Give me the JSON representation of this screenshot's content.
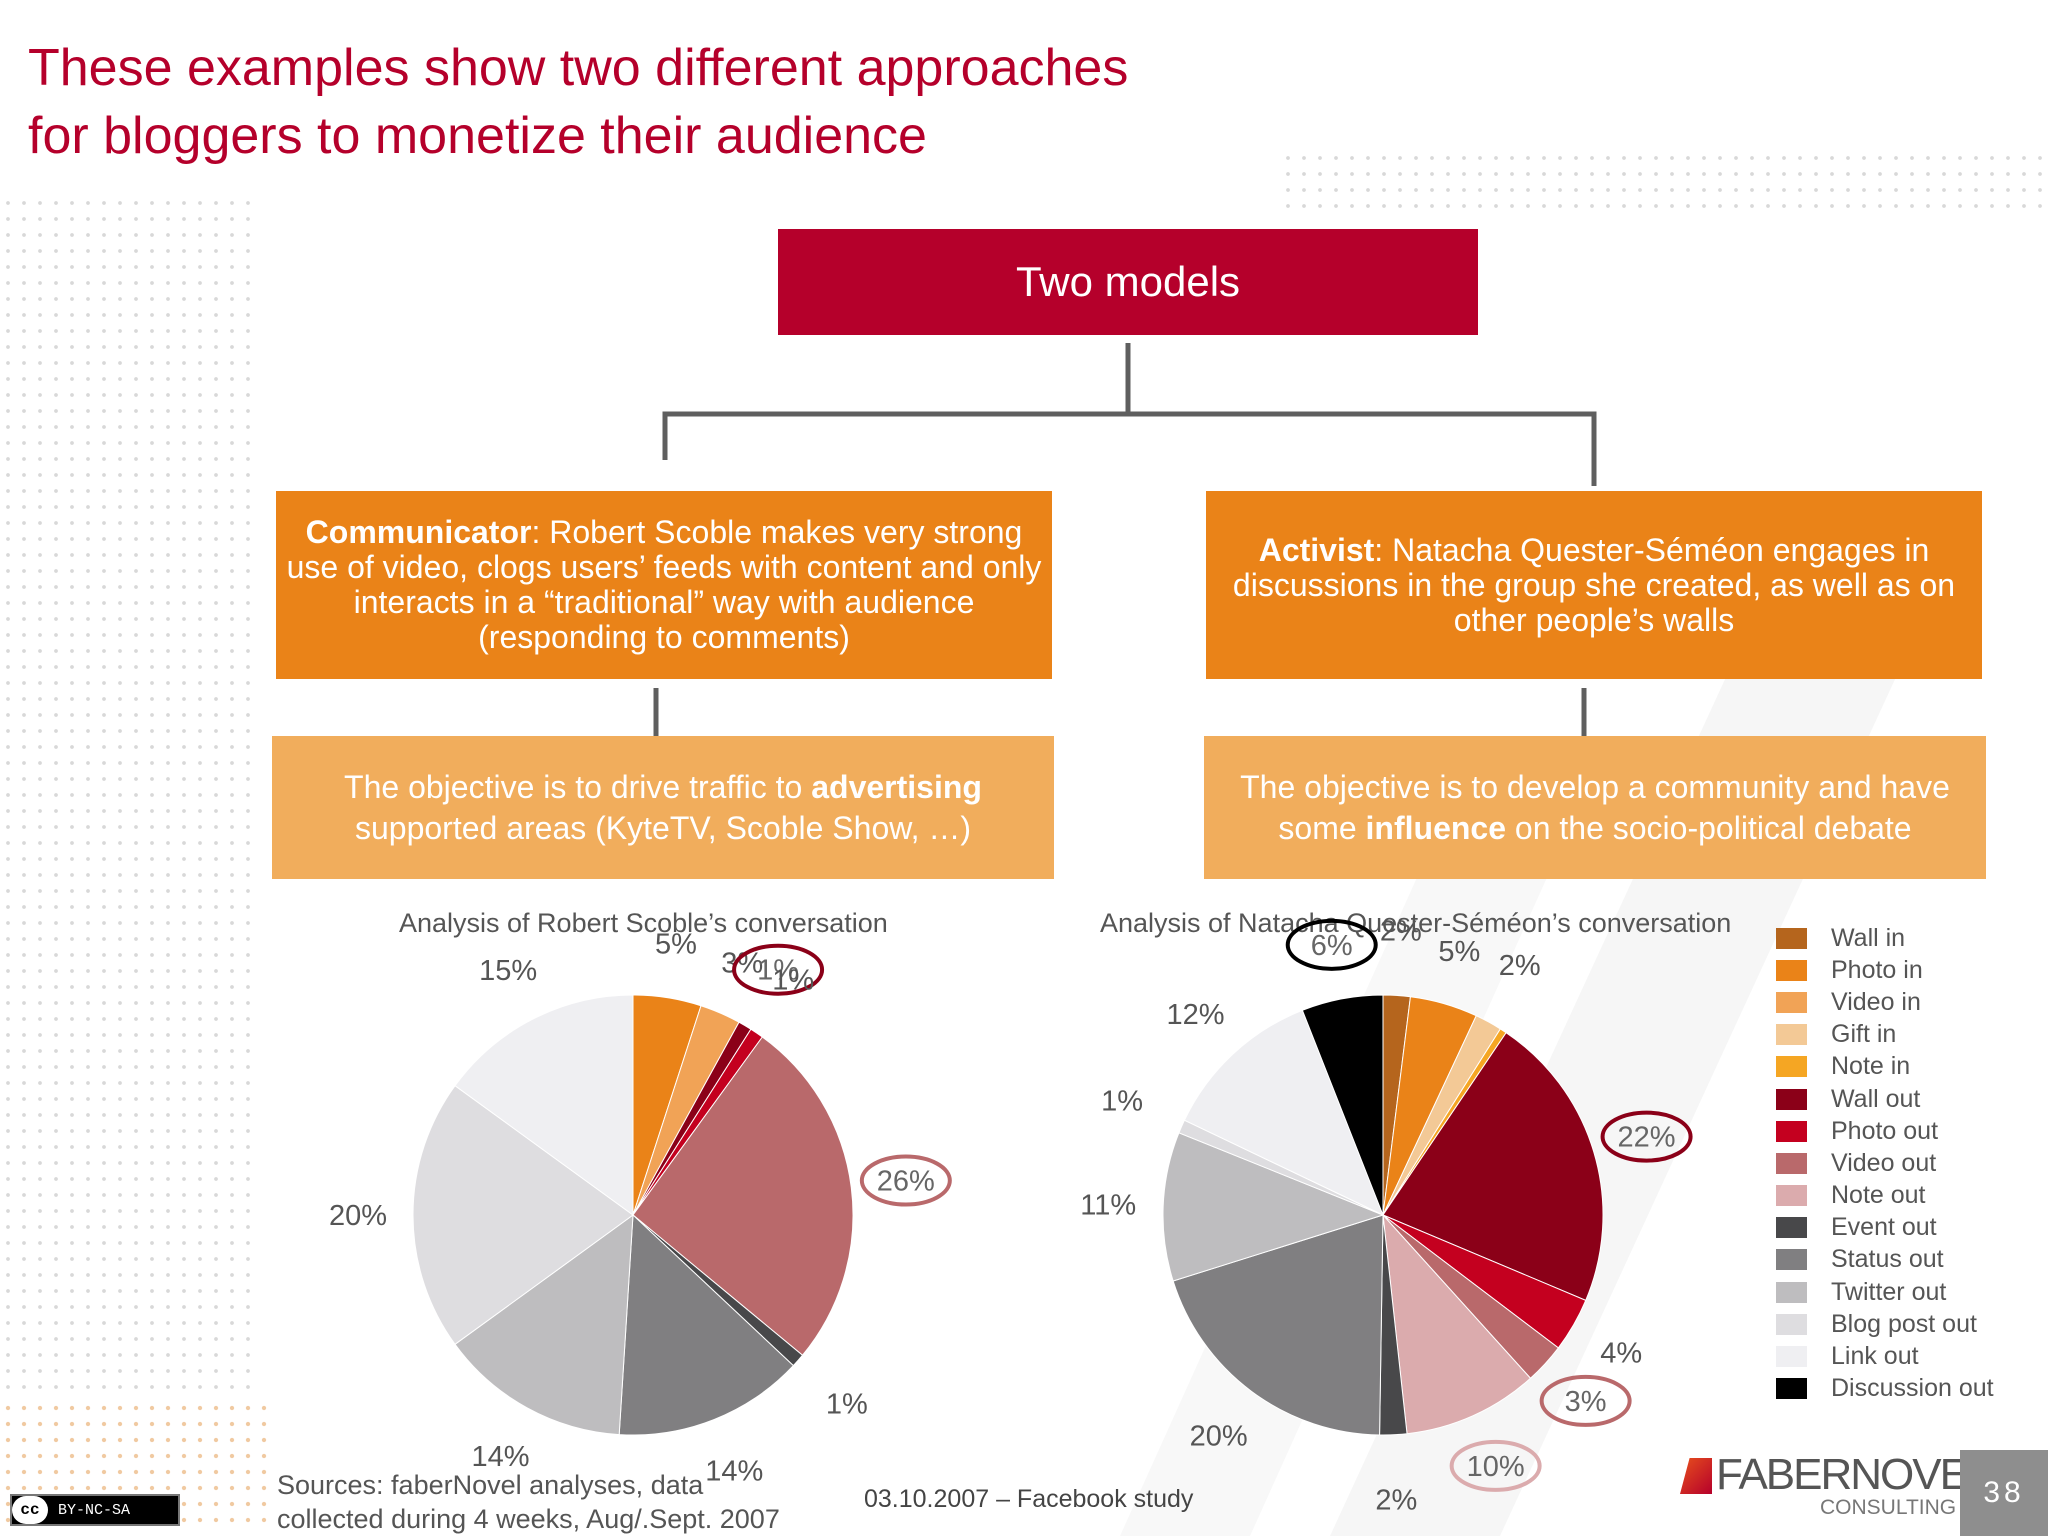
{
  "title": {
    "line1": "These examples show two different approaches",
    "line2": "for bloggers to monetize their audience"
  },
  "models": {
    "header": "Two models",
    "communicator": {
      "name": "Communicator",
      "description": ": Robert Scoble makes very strong use of video, clogs users’ feeds with content and only interacts in a “traditional” way with audience (responding to comments)",
      "objective_pre": "The objective is to drive traffic to ",
      "objective_bold": "advertising",
      "objective_post": " supported areas (KyteTV, Scoble Show, …)"
    },
    "activist": {
      "name": "Activist",
      "description": ": Natacha Quester-Séméon engages in discussions in the group she created, as well as on other people’s walls",
      "objective_pre": "The objective is to develop a community and have some ",
      "objective_bold": "influence",
      "objective_post": " on the socio-political debate"
    }
  },
  "colors": {
    "red": "#b5002b",
    "orange": "#ea8318",
    "light_orange": "#f1ad5c",
    "connector": "#5f5f5f"
  },
  "legend": [
    {
      "label": "Wall in",
      "color": "#b5651d"
    },
    {
      "label": "Photo in",
      "color": "#ea8318"
    },
    {
      "label": "Video in",
      "color": "#f1a356"
    },
    {
      "label": "Gift in",
      "color": "#f3c996"
    },
    {
      "label": "Note in",
      "color": "#f5a623"
    },
    {
      "label": "Wall out",
      "color": "#8b0018"
    },
    {
      "label": "Photo out",
      "color": "#c4001f"
    },
    {
      "label": "Video out",
      "color": "#b9696b"
    },
    {
      "label": "Note out",
      "color": "#dbabad"
    },
    {
      "label": "Event out",
      "color": "#48484a"
    },
    {
      "label": "Status out",
      "color": "#807f81"
    },
    {
      "label": "Twitter out",
      "color": "#bebdbf"
    },
    {
      "label": "Blog post out",
      "color": "#dedde0"
    },
    {
      "label": "Link out",
      "color": "#efeff2"
    },
    {
      "label": "Discussion out",
      "color": "#000000"
    }
  ],
  "chart_data": [
    {
      "type": "pie",
      "title": "Analysis of Robert Scoble’s conversation",
      "unit": "%",
      "slices": [
        {
          "category": "Photo in",
          "value": 5,
          "label": "5%"
        },
        {
          "category": "Video in",
          "value": 3,
          "label": "3%"
        },
        {
          "category": "Wall out",
          "value": 1,
          "label": "1%",
          "highlight": true
        },
        {
          "category": "Photo out",
          "value": 1,
          "label": "1%"
        },
        {
          "category": "Video out",
          "value": 26,
          "label": "26%",
          "highlight": true
        },
        {
          "category": "Event out",
          "value": 1,
          "label": "1%"
        },
        {
          "category": "Status out",
          "value": 14,
          "label": "14%"
        },
        {
          "category": "Twitter out",
          "value": 14,
          "label": "14%"
        },
        {
          "category": "Blog post out",
          "value": 20,
          "label": "20%"
        },
        {
          "category": "Link out",
          "value": 15,
          "label": "15%"
        }
      ]
    },
    {
      "type": "pie",
      "title": "Analysis of Natacha Quester-Séméon’s conversation",
      "unit": "%",
      "slices": [
        {
          "category": "Wall in",
          "value": 2,
          "label": "2%"
        },
        {
          "category": "Photo in",
          "value": 5,
          "label": "5%"
        },
        {
          "category": "Gift in",
          "value": 2,
          "label": "2%"
        },
        {
          "category": "Note in",
          "value": 0.5,
          "label": ""
        },
        {
          "category": "Wall out",
          "value": 22,
          "label": "22%",
          "highlight": true
        },
        {
          "category": "Photo out",
          "value": 4,
          "label": "4%"
        },
        {
          "category": "Video out",
          "value": 3,
          "label": "3%",
          "highlight": true
        },
        {
          "category": "Note out",
          "value": 10,
          "label": "10%",
          "highlight": true
        },
        {
          "category": "Event out",
          "value": 2,
          "label": "2%"
        },
        {
          "category": "Status out",
          "value": 20,
          "label": "20%"
        },
        {
          "category": "Twitter out",
          "value": 11,
          "label": "11%"
        },
        {
          "category": "Blog post out",
          "value": 1,
          "label": "1%"
        },
        {
          "category": "Link out",
          "value": 12,
          "label": "12%"
        },
        {
          "category": "Discussion out",
          "value": 6,
          "label": "6%",
          "highlight": true
        }
      ]
    }
  ],
  "footer": {
    "sources_line1": "Sources: faberNovel analyses, data",
    "sources_line2": "collected during 4 weeks, Aug/.Sept. 2007",
    "date": "03.10.2007 – Facebook study",
    "logo_main": "FABERNOVEL",
    "logo_sub": "CONSULTING",
    "page_number": "38",
    "license_cc": "cc",
    "license_text": "BY-NC-SA"
  }
}
